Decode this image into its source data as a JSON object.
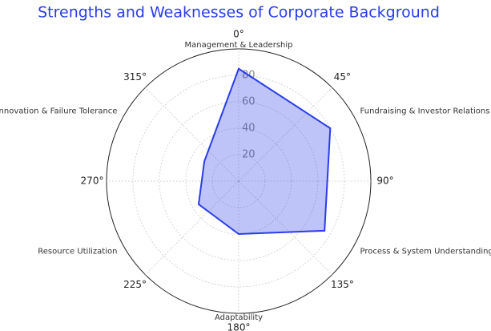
{
  "chart_data": {
    "type": "radar",
    "title": "Strengths and Weaknesses of Corporate Background",
    "categories": [
      "Management & Leadership",
      "Fundraising & Investor Relations",
      "Process & System Understanding",
      "Adaptability",
      "Resource Utilization",
      "Innovation & Failure Tolerance"
    ],
    "values": [
      85,
      80,
      75,
      40,
      35,
      30
    ],
    "color": "#2a3de8",
    "rlim": [
      0,
      100
    ],
    "rticks": [
      20,
      40,
      60,
      80
    ],
    "thetaticks": [
      {
        "value": 0,
        "label": "0°"
      },
      {
        "value": 45,
        "label": "45°"
      },
      {
        "value": 90,
        "label": "90°"
      },
      {
        "value": 135,
        "label": "135°"
      },
      {
        "value": 180,
        "label": "180°"
      },
      {
        "value": 225,
        "label": "225°"
      },
      {
        "value": 270,
        "label": "270°"
      },
      {
        "value": 315,
        "label": "315°"
      }
    ],
    "grid": true
  }
}
